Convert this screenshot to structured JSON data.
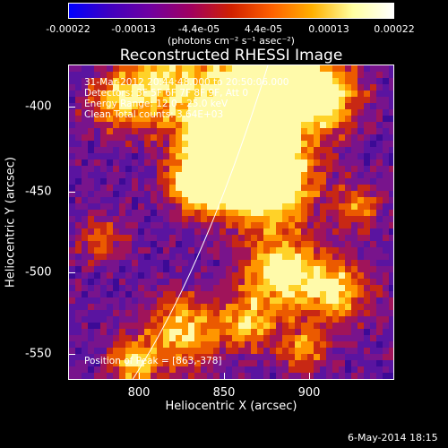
{
  "colorbar": {
    "tick_labels": [
      "-0.00022",
      "-0.00013",
      "-4.4e-05",
      "4.4e-05",
      "0.00013",
      "0.00022"
    ],
    "units": "(photons cm⁻² s⁻¹ asec⁻²)",
    "colors": [
      "#0000ff",
      "#4000c0",
      "#7000a0",
      "#a00060",
      "#d02000",
      "#ff6000",
      "#ffb000",
      "#ffffa0",
      "#ffffff"
    ]
  },
  "title": "Reconstructed RHESSI Image",
  "annotations": {
    "time_range": "31-Mar-2012 20:44:48.000 to 20:50:06.000",
    "detectors": "Detectors: 3F 5F 6F 7F 8F 9F, Att 0",
    "energy_range": "Energy Range: 12.0 - 25.0 keV",
    "method_counts": "Clean     Total counts: 3.64E+03",
    "peak_position": "Position of Peak = [863,-378]"
  },
  "axes": {
    "xlabel": "Heliocentric X (arcsec)",
    "ylabel": "Heliocentric Y (arcsec)",
    "xticks": [
      800,
      850,
      900
    ],
    "yticks": [
      -400,
      -450,
      -500,
      -550
    ],
    "xlim": [
      758,
      950
    ],
    "ylim": [
      -568,
      -382
    ]
  },
  "footer": "6-May-2014 18:15"
}
